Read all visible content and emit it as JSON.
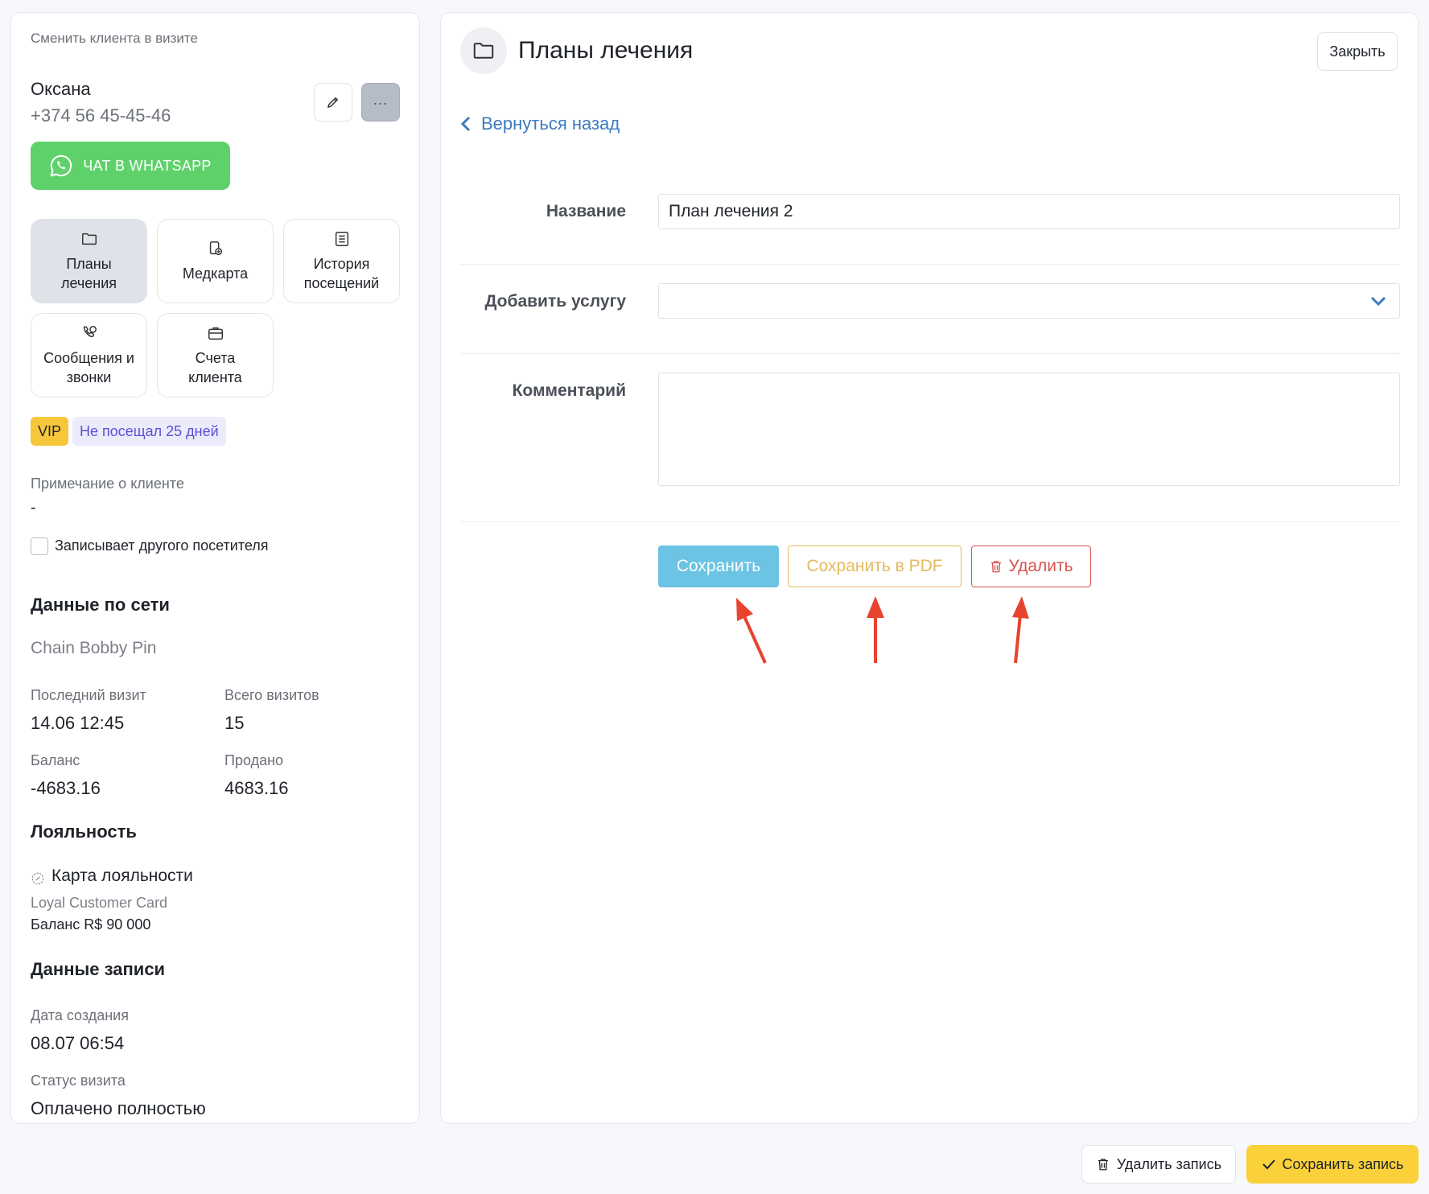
{
  "client": {
    "change_label": "Сменить клиента в визите",
    "name": "Оксана",
    "phone": "+374 56 45-45-46",
    "whatsapp_label": "ЧАТ В WHATSAPP",
    "tiles": [
      {
        "label": "Планы лечения",
        "icon": "folder-icon",
        "active": true
      },
      {
        "label": "Медкарта",
        "icon": "medcard-icon"
      },
      {
        "label": "История посещений",
        "icon": "history-icon"
      },
      {
        "label": "Сообщения и звонки",
        "icon": "messages-calls-icon"
      },
      {
        "label": "Счета клиента",
        "icon": "briefcase-icon"
      }
    ],
    "badges": {
      "vip": "VIP",
      "not_visited": "Не посещал 25 дней"
    },
    "note_label": "Примечание о клиенте",
    "note_value": "-",
    "other_visitor_label": "Записывает другого посетителя"
  },
  "network": {
    "title": "Данные по сети",
    "chain": "Chain Bobby Pin",
    "last_visit_label": "Последний визит",
    "last_visit": "14.06 12:45",
    "total_visits_label": "Всего визитов",
    "total_visits": "15",
    "balance_label": "Баланс",
    "balance": "-4683.16",
    "sold_label": "Продано",
    "sold": "4683.16"
  },
  "loyalty": {
    "title": "Лояльность",
    "card_title": "Карта лояльности",
    "card_name": "Loyal Customer Card",
    "card_balance": "Баланс R$ 90 000"
  },
  "record": {
    "title": "Данные записи",
    "created_label": "Дата создания",
    "created": "08.07 06:54",
    "status_label": "Статус визита",
    "status": "Оплачено полностью"
  },
  "plan": {
    "title": "Планы лечения",
    "close": "Закрыть",
    "back": "Вернуться назад",
    "name_label": "Название",
    "name_value": "План лечения 2",
    "service_label": "Добавить услугу",
    "service_value": "",
    "comment_label": "Комментарий",
    "comment_value": "",
    "save": "Сохранить",
    "save_pdf": "Сохранить в PDF",
    "delete": "Удалить"
  },
  "footer": {
    "delete_record": "Удалить запись",
    "save_record": "Сохранить запись"
  },
  "colors": {
    "whatsapp": "#5fd16a",
    "save": "#6cc3e3",
    "save_pdf": "#e6b95c",
    "delete": "#d9534f",
    "save_record": "#fbd13b",
    "link": "#3d7bbf",
    "arrow": "#e8432e"
  }
}
